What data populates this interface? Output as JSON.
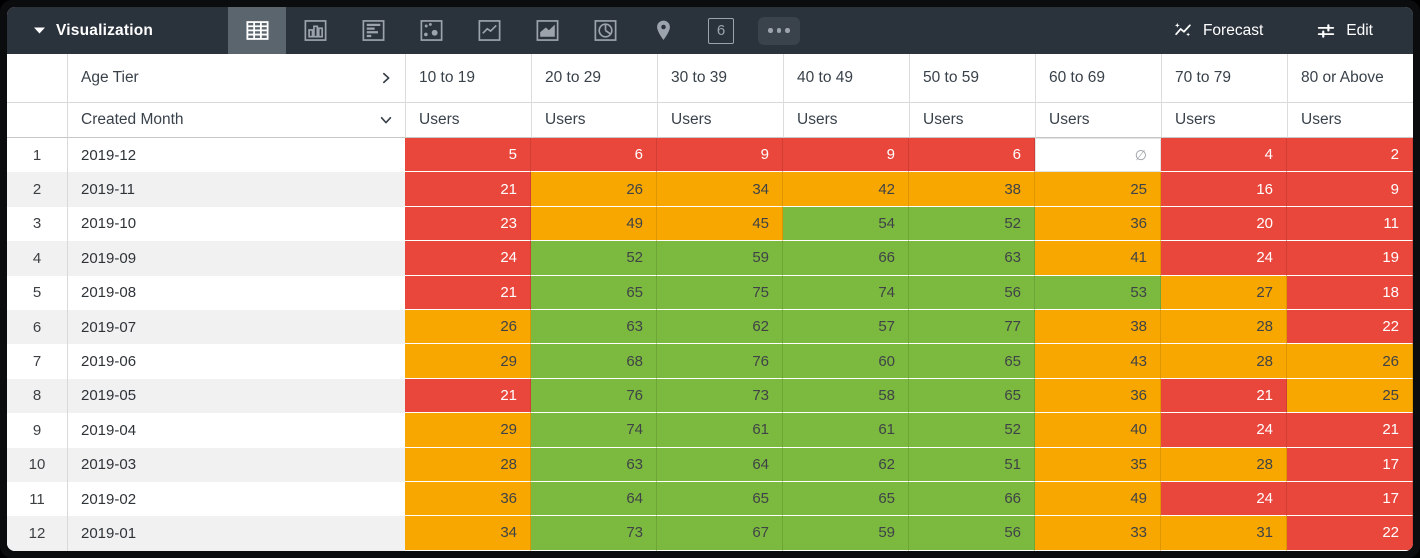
{
  "theme": {
    "frame": "#0B0C0E",
    "topbar": "#2A323C",
    "selected": "#5B656E",
    "icon": "#9CA3AA",
    "red": "#E9463C",
    "orange": "#F8A700",
    "green": "#7CB93F",
    "nullText": "#9AA0A6"
  },
  "toolbar": {
    "title": "Visualization",
    "forecast_label": "Forecast",
    "edit_label": "Edit",
    "icons": [
      {
        "id": "table",
        "selected": true
      },
      {
        "id": "column-chart",
        "selected": false
      },
      {
        "id": "bar-chart",
        "selected": false
      },
      {
        "id": "scatter-chart",
        "selected": false
      },
      {
        "id": "line-chart",
        "selected": false
      },
      {
        "id": "area-chart",
        "selected": false
      },
      {
        "id": "pie-chart",
        "selected": false
      },
      {
        "id": "map-pin",
        "selected": false
      },
      {
        "id": "single-value",
        "selected": false,
        "label": "6"
      },
      {
        "id": "more",
        "selected": false
      }
    ]
  },
  "table": {
    "pivot_field": "Age Tier",
    "row_field": "Created Month",
    "measure_label": "Users",
    "null_symbol": "∅",
    "columns": [
      "10 to 19",
      "20 to 29",
      "30 to 39",
      "40 to 49",
      "50 to 59",
      "60 to 69",
      "70 to 79",
      "80 or Above"
    ],
    "rows": [
      {
        "n": "1",
        "month": "2019-12",
        "cells": [
          {
            "v": "5",
            "c": "red"
          },
          {
            "v": "6",
            "c": "red"
          },
          {
            "v": "9",
            "c": "red"
          },
          {
            "v": "9",
            "c": "red"
          },
          {
            "v": "6",
            "c": "red"
          },
          {
            "v": "∅",
            "c": "null"
          },
          {
            "v": "4",
            "c": "red"
          },
          {
            "v": "2",
            "c": "red"
          }
        ]
      },
      {
        "n": "2",
        "month": "2019-11",
        "cells": [
          {
            "v": "21",
            "c": "red"
          },
          {
            "v": "26",
            "c": "orange"
          },
          {
            "v": "34",
            "c": "orange"
          },
          {
            "v": "42",
            "c": "orange"
          },
          {
            "v": "38",
            "c": "orange"
          },
          {
            "v": "25",
            "c": "orange"
          },
          {
            "v": "16",
            "c": "red"
          },
          {
            "v": "9",
            "c": "red"
          }
        ]
      },
      {
        "n": "3",
        "month": "2019-10",
        "cells": [
          {
            "v": "23",
            "c": "red"
          },
          {
            "v": "49",
            "c": "orange"
          },
          {
            "v": "45",
            "c": "orange"
          },
          {
            "v": "54",
            "c": "green"
          },
          {
            "v": "52",
            "c": "green"
          },
          {
            "v": "36",
            "c": "orange"
          },
          {
            "v": "20",
            "c": "red"
          },
          {
            "v": "11",
            "c": "red"
          }
        ]
      },
      {
        "n": "4",
        "month": "2019-09",
        "cells": [
          {
            "v": "24",
            "c": "red"
          },
          {
            "v": "52",
            "c": "green"
          },
          {
            "v": "59",
            "c": "green"
          },
          {
            "v": "66",
            "c": "green"
          },
          {
            "v": "63",
            "c": "green"
          },
          {
            "v": "41",
            "c": "orange"
          },
          {
            "v": "24",
            "c": "red"
          },
          {
            "v": "19",
            "c": "red"
          }
        ]
      },
      {
        "n": "5",
        "month": "2019-08",
        "cells": [
          {
            "v": "21",
            "c": "red"
          },
          {
            "v": "65",
            "c": "green"
          },
          {
            "v": "75",
            "c": "green"
          },
          {
            "v": "74",
            "c": "green"
          },
          {
            "v": "56",
            "c": "green"
          },
          {
            "v": "53",
            "c": "green"
          },
          {
            "v": "27",
            "c": "orange"
          },
          {
            "v": "18",
            "c": "red"
          }
        ]
      },
      {
        "n": "6",
        "month": "2019-07",
        "cells": [
          {
            "v": "26",
            "c": "orange"
          },
          {
            "v": "63",
            "c": "green"
          },
          {
            "v": "62",
            "c": "green"
          },
          {
            "v": "57",
            "c": "green"
          },
          {
            "v": "77",
            "c": "green"
          },
          {
            "v": "38",
            "c": "orange"
          },
          {
            "v": "28",
            "c": "orange"
          },
          {
            "v": "22",
            "c": "red"
          }
        ]
      },
      {
        "n": "7",
        "month": "2019-06",
        "cells": [
          {
            "v": "29",
            "c": "orange"
          },
          {
            "v": "68",
            "c": "green"
          },
          {
            "v": "76",
            "c": "green"
          },
          {
            "v": "60",
            "c": "green"
          },
          {
            "v": "65",
            "c": "green"
          },
          {
            "v": "43",
            "c": "orange"
          },
          {
            "v": "28",
            "c": "orange"
          },
          {
            "v": "26",
            "c": "orange"
          }
        ]
      },
      {
        "n": "8",
        "month": "2019-05",
        "cells": [
          {
            "v": "21",
            "c": "red"
          },
          {
            "v": "76",
            "c": "green"
          },
          {
            "v": "73",
            "c": "green"
          },
          {
            "v": "58",
            "c": "green"
          },
          {
            "v": "65",
            "c": "green"
          },
          {
            "v": "36",
            "c": "orange"
          },
          {
            "v": "21",
            "c": "red"
          },
          {
            "v": "25",
            "c": "orange"
          }
        ]
      },
      {
        "n": "9",
        "month": "2019-04",
        "cells": [
          {
            "v": "29",
            "c": "orange"
          },
          {
            "v": "74",
            "c": "green"
          },
          {
            "v": "61",
            "c": "green"
          },
          {
            "v": "61",
            "c": "green"
          },
          {
            "v": "52",
            "c": "green"
          },
          {
            "v": "40",
            "c": "orange"
          },
          {
            "v": "24",
            "c": "red"
          },
          {
            "v": "21",
            "c": "red"
          }
        ]
      },
      {
        "n": "10",
        "month": "2019-03",
        "cells": [
          {
            "v": "28",
            "c": "orange"
          },
          {
            "v": "63",
            "c": "green"
          },
          {
            "v": "64",
            "c": "green"
          },
          {
            "v": "62",
            "c": "green"
          },
          {
            "v": "51",
            "c": "green"
          },
          {
            "v": "35",
            "c": "orange"
          },
          {
            "v": "28",
            "c": "orange"
          },
          {
            "v": "17",
            "c": "red"
          }
        ]
      },
      {
        "n": "11",
        "month": "2019-02",
        "cells": [
          {
            "v": "36",
            "c": "orange"
          },
          {
            "v": "64",
            "c": "green"
          },
          {
            "v": "65",
            "c": "green"
          },
          {
            "v": "65",
            "c": "green"
          },
          {
            "v": "66",
            "c": "green"
          },
          {
            "v": "49",
            "c": "orange"
          },
          {
            "v": "24",
            "c": "red"
          },
          {
            "v": "17",
            "c": "red"
          }
        ]
      },
      {
        "n": "12",
        "month": "2019-01",
        "cells": [
          {
            "v": "34",
            "c": "orange"
          },
          {
            "v": "73",
            "c": "green"
          },
          {
            "v": "67",
            "c": "green"
          },
          {
            "v": "59",
            "c": "green"
          },
          {
            "v": "56",
            "c": "green"
          },
          {
            "v": "33",
            "c": "orange"
          },
          {
            "v": "31",
            "c": "orange"
          },
          {
            "v": "22",
            "c": "red"
          }
        ]
      }
    ]
  }
}
